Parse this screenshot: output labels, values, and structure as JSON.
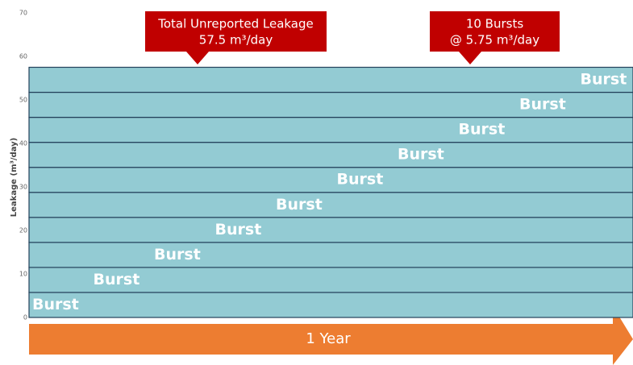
{
  "chart_data": {
    "type": "stacked_bar",
    "ylabel": "Leakage (m³/day)",
    "ylim": [
      0,
      70
    ],
    "yticks": [
      0,
      10,
      20,
      30,
      40,
      50,
      60,
      70
    ],
    "color": "#93cbd3",
    "series": [
      {
        "name": "Burst",
        "values": [
          5.75
        ]
      },
      {
        "name": "Burst",
        "values": [
          5.75
        ]
      },
      {
        "name": "Burst",
        "values": [
          5.75
        ]
      },
      {
        "name": "Burst",
        "values": [
          5.75
        ]
      },
      {
        "name": "Burst",
        "values": [
          5.75
        ]
      },
      {
        "name": "Burst",
        "values": [
          5.75
        ]
      },
      {
        "name": "Burst",
        "values": [
          5.75
        ]
      },
      {
        "name": "Burst",
        "values": [
          5.75
        ]
      },
      {
        "name": "Burst",
        "values": [
          5.75
        ]
      },
      {
        "name": "Burst",
        "values": [
          5.75
        ]
      }
    ],
    "annotations": [
      {
        "lines": [
          "Total Unreported Leakage",
          "57.5 m³/day"
        ]
      },
      {
        "lines": [
          "10 Bursts",
          "@ 5.75 m³/day"
        ]
      }
    ],
    "xlabel": "1 Year"
  }
}
